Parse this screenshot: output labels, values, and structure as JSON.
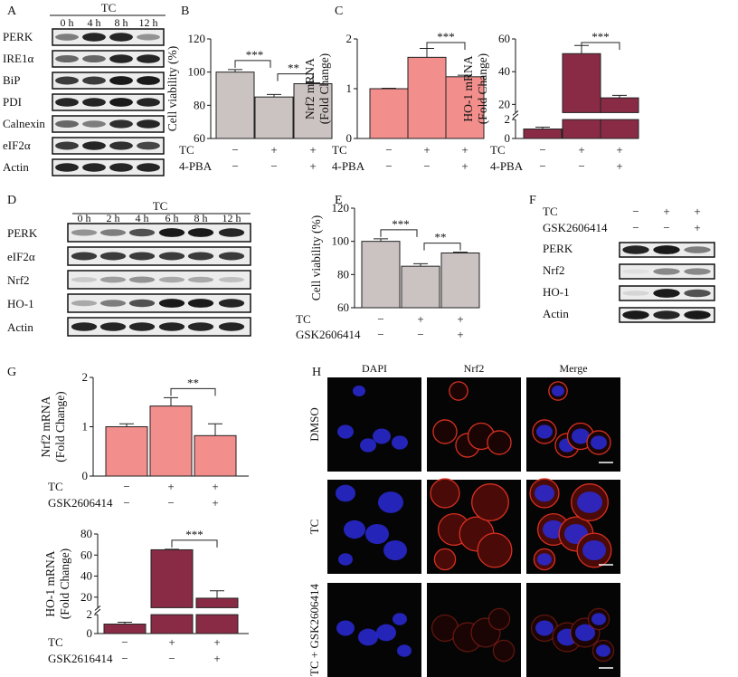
{
  "colors": {
    "gray": "#cbc3c1",
    "pink": "#f28e8b",
    "maroon": "#8a2b46",
    "dapi": "#2a2ad8",
    "nrf2": "#d83020"
  },
  "panel_labels": [
    "A",
    "B",
    "C",
    "D",
    "E",
    "F",
    "G",
    "H"
  ],
  "blots": [
    {
      "id": "A",
      "group": "TC",
      "lanes": [
        "0 h",
        "4 h",
        "8 h",
        "12 h"
      ],
      "rows": [
        {
          "label": "PERK",
          "band_intensity": [
            0.5,
            0.9,
            0.9,
            0.4
          ]
        },
        {
          "label": "IRE1α",
          "band_intensity": [
            0.6,
            0.6,
            0.9,
            0.9
          ]
        },
        {
          "label": "BiP",
          "band_intensity": [
            0.8,
            0.8,
            0.95,
            0.95
          ]
        },
        {
          "label": "PDI",
          "band_intensity": [
            0.9,
            0.9,
            0.95,
            0.9
          ]
        },
        {
          "label": "Calnexin",
          "band_intensity": [
            0.6,
            0.5,
            0.85,
            0.9
          ]
        },
        {
          "label": "eIF2α",
          "band_intensity": [
            0.8,
            0.9,
            0.85,
            0.75
          ]
        },
        {
          "label": "Actin",
          "band_intensity": [
            0.9,
            0.9,
            0.9,
            0.9
          ]
        }
      ]
    },
    {
      "id": "D",
      "group": "TC",
      "lanes": [
        "0 h",
        "2 h",
        "4 h",
        "6 h",
        "8 h",
        "12 h"
      ],
      "rows": [
        {
          "label": "PERK",
          "band_intensity": [
            0.4,
            0.5,
            0.7,
            0.95,
            0.95,
            0.9
          ]
        },
        {
          "label": "eIF2α",
          "band_intensity": [
            0.8,
            0.8,
            0.8,
            0.8,
            0.8,
            0.8
          ]
        },
        {
          "label": "Nrf2",
          "band_intensity": [
            0.15,
            0.35,
            0.4,
            0.3,
            0.3,
            0.2
          ]
        },
        {
          "label": "HO-1",
          "band_intensity": [
            0.3,
            0.5,
            0.7,
            0.95,
            0.95,
            0.9
          ]
        },
        {
          "label": "Actin",
          "band_intensity": [
            0.9,
            0.9,
            0.9,
            0.9,
            0.9,
            0.9
          ]
        }
      ]
    },
    {
      "id": "F",
      "conditions": [
        {
          "label": "TC",
          "signs": [
            "−",
            "+",
            "+"
          ]
        },
        {
          "label": "GSK2606414",
          "signs": [
            "−",
            "−",
            "+"
          ]
        }
      ],
      "rows": [
        {
          "label": "PERK",
          "band_intensity": [
            0.9,
            0.95,
            0.5
          ]
        },
        {
          "label": "Nrf2",
          "band_intensity": [
            0.05,
            0.45,
            0.45
          ]
        },
        {
          "label": "HO-1",
          "band_intensity": [
            0.1,
            0.95,
            0.7
          ]
        },
        {
          "label": "Actin",
          "band_intensity": [
            0.95,
            0.9,
            0.95
          ]
        }
      ]
    }
  ],
  "chart_data": [
    {
      "id": "B",
      "type": "bar",
      "ylabel": "Cell viability (%)",
      "ylim": [
        60,
        120
      ],
      "yticks": [
        "60",
        "80",
        "100",
        "120"
      ],
      "values": [
        100,
        85,
        93
      ],
      "errors": [
        1.5,
        1.5,
        0.5
      ],
      "color": "gray",
      "conditions": [
        {
          "label": "TC",
          "signs": [
            "−",
            "+",
            "+"
          ]
        },
        {
          "label": "4-PBA",
          "signs": [
            "−",
            "−",
            "+"
          ]
        }
      ],
      "significance": [
        {
          "from": 0,
          "to": 1,
          "label": "***"
        },
        {
          "from": 1,
          "to": 2,
          "label": "**"
        }
      ]
    },
    {
      "id": "C1",
      "type": "bar",
      "ylabel": [
        "Nrf2 mRNA",
        "(Fold Change)"
      ],
      "ylim": [
        0,
        2
      ],
      "yticks": [
        "0",
        "1",
        "2"
      ],
      "values": [
        1.0,
        1.63,
        1.24
      ],
      "errors": [
        0.01,
        0.18,
        0.03
      ],
      "color": "pink",
      "conditions": [
        {
          "label": "TC",
          "signs": [
            "−",
            "+",
            "+"
          ]
        },
        {
          "label": "4-PBA",
          "signs": [
            "−",
            "−",
            "+"
          ]
        }
      ],
      "significance": [
        {
          "from": 1,
          "to": 2,
          "label": "***"
        }
      ]
    },
    {
      "id": "C2",
      "type": "bar",
      "ylabel": [
        "HO-1 mRNA",
        "(Fold Change)"
      ],
      "ylim": [
        0,
        60
      ],
      "axis_break": [
        2,
        15
      ],
      "yticks": [
        "0",
        "2",
        "20",
        "40",
        "60"
      ],
      "values": [
        1.0,
        51,
        24
      ],
      "errors": [
        0.2,
        5,
        1.5
      ],
      "color": "maroon",
      "conditions": [
        {
          "label": "TC",
          "signs": [
            "−",
            "+",
            "+"
          ]
        },
        {
          "label": "4-PBA",
          "signs": [
            "−",
            "−",
            "+"
          ]
        }
      ],
      "significance": [
        {
          "from": 1,
          "to": 2,
          "label": "***"
        }
      ]
    },
    {
      "id": "E",
      "type": "bar",
      "ylabel": "Cell viability (%)",
      "ylim": [
        60,
        120
      ],
      "yticks": [
        "60",
        "80",
        "100",
        "120"
      ],
      "values": [
        100,
        85,
        93
      ],
      "errors": [
        1.5,
        1.5,
        0.5
      ],
      "color": "gray",
      "conditions": [
        {
          "label": "TC",
          "signs": [
            "−",
            "+",
            "+"
          ]
        },
        {
          "label": "GSK2606414",
          "signs": [
            "−",
            "−",
            "+"
          ]
        }
      ],
      "significance": [
        {
          "from": 0,
          "to": 1,
          "label": "***"
        },
        {
          "from": 1,
          "to": 2,
          "label": "**"
        }
      ]
    },
    {
      "id": "G1",
      "type": "bar",
      "ylabel": [
        "Nrf2 mRNA",
        "(Fold Change)"
      ],
      "ylim": [
        0,
        2
      ],
      "yticks": [
        "0",
        "1",
        "2"
      ],
      "values": [
        1.0,
        1.42,
        0.82
      ],
      "errors": [
        0.06,
        0.17,
        0.24
      ],
      "color": "pink",
      "conditions": [
        {
          "label": "TC",
          "signs": [
            "−",
            "+",
            "+"
          ]
        },
        {
          "label": "GSK2606414",
          "signs": [
            "−",
            "−",
            "+"
          ]
        }
      ],
      "significance": [
        {
          "from": 1,
          "to": 2,
          "label": "**"
        }
      ]
    },
    {
      "id": "G2",
      "type": "bar",
      "ylabel": [
        "HO-1 mRNA",
        "(Fold Change)"
      ],
      "ylim": [
        0,
        80
      ],
      "axis_break": [
        2,
        10
      ],
      "yticks": [
        "0",
        "2",
        "20",
        "40",
        "60",
        "80"
      ],
      "values": [
        1.0,
        65,
        19
      ],
      "errors": [
        0.2,
        0.5,
        7
      ],
      "color": "maroon",
      "conditions": [
        {
          "label": "TC",
          "signs": [
            "−",
            "+",
            "+"
          ]
        },
        {
          "label": "GSK2616414",
          "signs": [
            "−",
            "−",
            "+"
          ]
        }
      ],
      "significance": [
        {
          "from": 1,
          "to": 2,
          "label": "***"
        }
      ]
    }
  ],
  "microscopy": {
    "columns": [
      "DAPI",
      "Nrf2",
      "Merge"
    ],
    "rows": [
      "DMSO",
      "TC",
      "TC + GSK2606414"
    ]
  }
}
